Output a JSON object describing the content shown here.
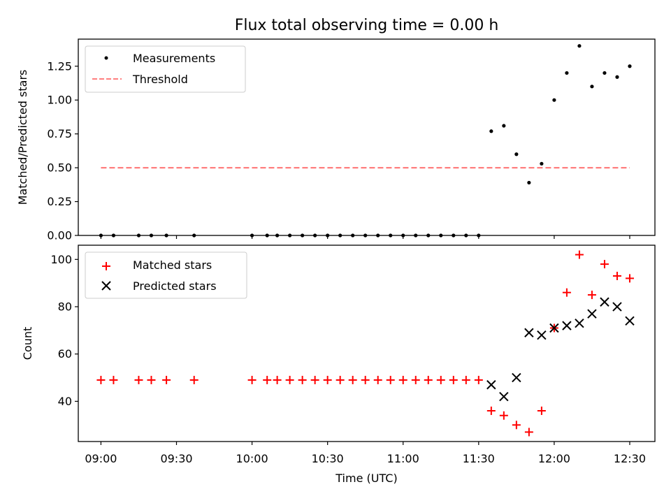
{
  "chart_data": [
    {
      "type": "scatter",
      "title": "Flux total observing time = 0.00 h",
      "ylabel": "Matched/Predicted stars",
      "xlabel": "",
      "ylim": [
        0,
        1.45
      ],
      "xlim": [
        "08:51",
        "12:40"
      ],
      "grid": false,
      "legend_position": "top-left",
      "yticks": [
        "0.00",
        "0.25",
        "0.50",
        "0.75",
        "1.00",
        "1.25"
      ],
      "series": [
        {
          "name": "Measurements",
          "marker": "dot",
          "color": "#000000",
          "x": [
            "09:00",
            "09:05",
            "09:15",
            "09:20",
            "09:26",
            "09:37",
            "10:00",
            "10:06",
            "10:10",
            "10:15",
            "10:20",
            "10:25",
            "10:30",
            "10:35",
            "10:40",
            "10:45",
            "10:50",
            "10:55",
            "11:00",
            "11:05",
            "11:10",
            "11:15",
            "11:20",
            "11:25",
            "11:30",
            "11:35",
            "11:40",
            "11:45",
            "11:50",
            "11:55",
            "12:00",
            "12:05",
            "12:10",
            "12:15",
            "12:20",
            "12:25",
            "12:30"
          ],
          "y": [
            0,
            0,
            0,
            0,
            0,
            0,
            0,
            0,
            0,
            0,
            0,
            0,
            0,
            0,
            0,
            0,
            0,
            0,
            0,
            0,
            0,
            0,
            0,
            0,
            0,
            0.77,
            0.81,
            0.6,
            0.39,
            0.53,
            1.0,
            1.2,
            1.4,
            1.1,
            1.2,
            1.17,
            1.25
          ]
        },
        {
          "name": "Threshold",
          "line": "dashed",
          "color": "#ff7f7f",
          "x": [
            "09:00",
            "12:30"
          ],
          "y": [
            0.5,
            0.5
          ]
        }
      ]
    },
    {
      "type": "scatter",
      "title": "",
      "ylabel": "Count",
      "xlabel": "Time (UTC)",
      "ylim": [
        23,
        106
      ],
      "xlim": [
        "08:51",
        "12:40"
      ],
      "grid": false,
      "legend_position": "top-left",
      "yticks": [
        "40",
        "60",
        "80",
        "100"
      ],
      "xticks": [
        "09:00",
        "09:30",
        "10:00",
        "10:30",
        "11:00",
        "11:30",
        "12:00",
        "12:30"
      ],
      "series": [
        {
          "name": "Matched stars",
          "marker": "plus",
          "color": "#ff0000",
          "x": [
            "09:00",
            "09:05",
            "09:15",
            "09:20",
            "09:26",
            "09:37",
            "10:00",
            "10:06",
            "10:10",
            "10:15",
            "10:20",
            "10:25",
            "10:30",
            "10:35",
            "10:40",
            "10:45",
            "10:50",
            "10:55",
            "11:00",
            "11:05",
            "11:10",
            "11:15",
            "11:20",
            "11:25",
            "11:30",
            "11:35",
            "11:40",
            "11:45",
            "11:50",
            "11:55",
            "12:00",
            "12:05",
            "12:10",
            "12:15",
            "12:20",
            "12:25",
            "12:30"
          ],
          "y": [
            49,
            49,
            49,
            49,
            49,
            49,
            49,
            49,
            49,
            49,
            49,
            49,
            49,
            49,
            49,
            49,
            49,
            49,
            49,
            49,
            49,
            49,
            49,
            49,
            49,
            36,
            34,
            30,
            27,
            36,
            71,
            86,
            102,
            85,
            98,
            93,
            92
          ]
        },
        {
          "name": "Predicted stars",
          "marker": "x",
          "color": "#000000",
          "x": [
            "11:35",
            "11:40",
            "11:45",
            "11:50",
            "11:55",
            "12:00",
            "12:05",
            "12:10",
            "12:15",
            "12:20",
            "12:25",
            "12:30"
          ],
          "y": [
            47,
            42,
            50,
            69,
            68,
            71,
            72,
            73,
            77,
            82,
            80,
            74
          ]
        }
      ]
    }
  ]
}
